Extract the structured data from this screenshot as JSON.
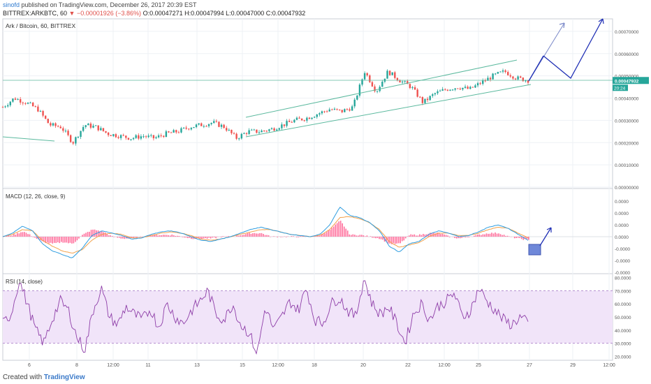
{
  "header": {
    "author": "sinofd",
    "published_text": "published on TradingView.com, December 26, 2017 20:39 EST",
    "symbol": "BITTREX:ARKBTC, 60",
    "change_arrow": "▼",
    "change": "−0.00001926 (−3.86%)",
    "ohlc": "O:0.00047271 H:0.00047994 L:0.00047000 C:0.00047932"
  },
  "footer": {
    "created_with": "Created with",
    "brand": "TradingView"
  },
  "colors": {
    "up": "#26a69a",
    "down": "#ef5350",
    "channel": "#5bb99e",
    "macd_line": "#2e9de0",
    "signal_line": "#f2a14a",
    "hist_pos": "#ff6f9c",
    "rsi_line": "#8e3ea8",
    "rsi_band": "#f1e4f9",
    "drawing": "#1f2fb5",
    "box": "#6f88d9",
    "price_tag": "#26a69a",
    "grid": "#eef1f5"
  },
  "chart_data": [
    {
      "type": "candlestick",
      "title": "Ark / Bitcoin, 60, BITTREX",
      "yticks": [
        "0.00070000",
        "0.00060000",
        "0.00050000",
        "0.00040000",
        "0.00030000",
        "0.00020000",
        "0.00010000",
        "0.00000000"
      ],
      "ylim": [
        0,
        0.00075
      ],
      "last_price": "0.00047932",
      "countdown": "20:24",
      "close_series": [
        [
          "Dec 5 0:00",
          0.00036
        ],
        [
          "Dec 5 12:00",
          0.0004
        ],
        [
          "Dec 6 0:00",
          0.00038
        ],
        [
          "Dec 6 12:00",
          0.00035
        ],
        [
          "Dec 7 0:00",
          0.00028
        ],
        [
          "Dec 7 12:00",
          0.00027
        ],
        [
          "Dec 8 0:00",
          0.0002
        ],
        [
          "Dec 8 12:00",
          0.00028
        ],
        [
          "Dec 9 0:00",
          0.00027
        ],
        [
          "Dec 9 12:00",
          0.00024
        ],
        [
          "Dec 10 0:00",
          0.00023
        ],
        [
          "Dec 10 12:00",
          0.00022
        ],
        [
          "Dec 11 0:00",
          0.00023
        ],
        [
          "Dec 11 12:00",
          0.00022
        ],
        [
          "Dec 12 0:00",
          0.00024
        ],
        [
          "Dec 12 12:00",
          0.00025
        ],
        [
          "Dec 13 0:00",
          0.00027
        ],
        [
          "Dec 13 12:00",
          0.00028
        ],
        [
          "Dec 14 0:00",
          0.00029
        ],
        [
          "Dec 14 12:00",
          0.00027
        ],
        [
          "Dec 15 0:00",
          0.00022
        ],
        [
          "Dec 15 12:00",
          0.00025
        ],
        [
          "Dec 16 0:00",
          0.00025
        ],
        [
          "Dec 16 12:00",
          0.00026
        ],
        [
          "Dec 17 0:00",
          0.00028
        ],
        [
          "Dec 17 12:00",
          0.0003
        ],
        [
          "Dec 18 0:00",
          0.00031
        ],
        [
          "Dec 18 12:00",
          0.00033
        ],
        [
          "Dec 19 0:00",
          0.00035
        ],
        [
          "Dec 19 12:00",
          0.00034
        ],
        [
          "Dec 20 0:00",
          0.00036
        ],
        [
          "Dec 20 6:00",
          0.00052
        ],
        [
          "Dec 20 12:00",
          0.00043
        ],
        [
          "Dec 21 0:00",
          0.00052
        ],
        [
          "Dec 21 12:00",
          0.00048
        ],
        [
          "Dec 22 0:00",
          0.00045
        ],
        [
          "Dec 22 12:00",
          0.00038
        ],
        [
          "Dec 23 0:00",
          0.00042
        ],
        [
          "Dec 23 12:00",
          0.00044
        ],
        [
          "Dec 24 0:00",
          0.00045
        ],
        [
          "Dec 24 12:00",
          0.00044
        ],
        [
          "Dec 25 0:00",
          0.00047
        ],
        [
          "Dec 25 12:00",
          0.0005
        ],
        [
          "Dec 26 0:00",
          0.00052
        ],
        [
          "Dec 26 12:00",
          0.00049
        ],
        [
          "Dec 27 0:00",
          0.00048
        ]
      ]
    },
    {
      "type": "line",
      "title": "MACD (12, 26, close, 9)",
      "yticks": [
        "0.0000",
        "0.0000",
        "0.0000",
        "0.0000",
        "-0.0000",
        "-0.0000",
        "-0.0000"
      ],
      "series": [
        {
          "name": "MACD",
          "shape": [
            0,
            0.3,
            0.9,
            0.5,
            -0.6,
            -1.2,
            -1.5,
            -1.8,
            -1.0,
            0.1,
            0.5,
            0.3,
            0.1,
            -0.2,
            -0.1,
            0.2,
            0.4,
            0.5,
            0.3,
            0,
            -0.3,
            -0.4,
            -0.2,
            0,
            0.3,
            0.6,
            0.8,
            0.6,
            0.4,
            0.2,
            0.1,
            0,
            0.2,
            1.0,
            2.5,
            1.8,
            1.6,
            1.2,
            0.5,
            -0.8,
            -1.3,
            -0.6,
            -0.4,
            0.2,
            0.5,
            0.3,
            0,
            0.1,
            0.4,
            0.8,
            1.0,
            0.7,
            0.2,
            -0.3
          ]
        },
        {
          "name": "Signal",
          "shape": [
            0,
            0.2,
            0.6,
            0.5,
            -0.3,
            -0.8,
            -1.2,
            -1.4,
            -1.1,
            -0.3,
            0.2,
            0.3,
            0.2,
            -0.1,
            -0.1,
            0.1,
            0.3,
            0.4,
            0.3,
            0.1,
            -0.2,
            -0.3,
            -0.2,
            0,
            0.2,
            0.4,
            0.6,
            0.6,
            0.4,
            0.2,
            0.1,
            0,
            0.1,
            0.6,
            1.6,
            1.7,
            1.5,
            1.2,
            0.6,
            -0.4,
            -0.9,
            -0.7,
            -0.5,
            0,
            0.3,
            0.3,
            0.1,
            0.1,
            0.3,
            0.6,
            0.8,
            0.7,
            0.3,
            -0.1
          ]
        }
      ]
    },
    {
      "type": "line",
      "title": "RSI (14, close)",
      "yticks": [
        80,
        70,
        60,
        50,
        40,
        30,
        20
      ],
      "ylim": [
        17,
        83
      ],
      "band": [
        30,
        70
      ],
      "series": [
        {
          "name": "RSI",
          "values": [
            45,
            52,
            78,
            60,
            40,
            30,
            48,
            62,
            55,
            35,
            25,
            55,
            72,
            50,
            44,
            58,
            52,
            48,
            56,
            42,
            60,
            50,
            45,
            55,
            62,
            70,
            52,
            48,
            60,
            44,
            38,
            22,
            58,
            40,
            50,
            62,
            55,
            72,
            48,
            45,
            60,
            65,
            55,
            50,
            80,
            60,
            52,
            58,
            45,
            30,
            52,
            60,
            48,
            58,
            62,
            68,
            50,
            55,
            72,
            62,
            55,
            48,
            44,
            50,
            45
          ]
        }
      ]
    }
  ],
  "xaxis": {
    "ticks": [
      "6",
      "8",
      "12:00",
      "11",
      "13",
      "15",
      "12:00",
      "18",
      "20",
      "22",
      "12:00",
      "25",
      "27",
      "29",
      "12:00"
    ]
  }
}
